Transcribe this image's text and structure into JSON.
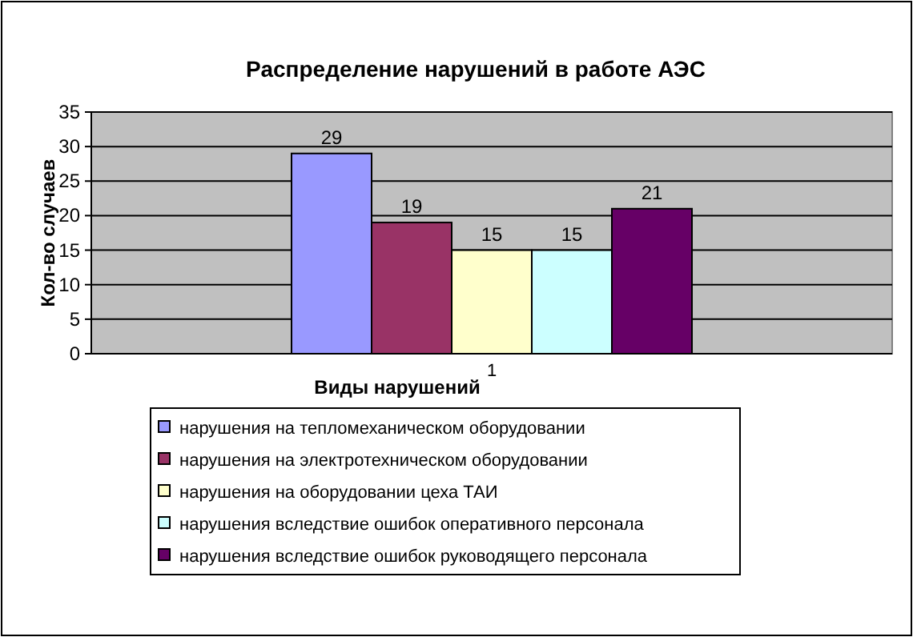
{
  "chart_data": {
    "type": "bar",
    "title": "Распределение нарушений в работе АЭС",
    "xlabel": "Виды нарушений",
    "ylabel": "Кол-во случаев",
    "categories": [
      "1"
    ],
    "series": [
      {
        "name": "нарушения на тепломеханическом оборудовании",
        "color": "#9999ff",
        "values": [
          29
        ]
      },
      {
        "name": "нарушения на электротехническом оборудовании",
        "color": "#993366",
        "values": [
          19
        ]
      },
      {
        "name": "нарушения на оборудовании цеха ТАИ",
        "color": "#ffffcc",
        "values": [
          15
        ]
      },
      {
        "name": "нарушения вследствие ошибок оперативного персонала",
        "color": "#ccffff",
        "values": [
          15
        ]
      },
      {
        "name": "нарушения вследствие ошибок руководящего персонала",
        "color": "#660066",
        "values": [
          21
        ]
      }
    ],
    "ylim": [
      0,
      35
    ],
    "yticks": [
      0,
      5,
      10,
      15,
      20,
      25,
      30,
      35
    ],
    "grid": "y",
    "legend": "bottom",
    "data_labels": true
  }
}
